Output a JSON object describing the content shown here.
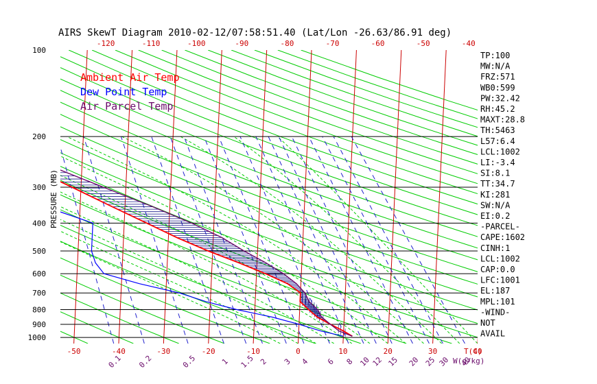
{
  "chart_data": {
    "type": "line",
    "title": "AIRS SkewT Diagram 2010-02-12/07:58:51.40 (Lat/Lon -26.63/86.91 deg)",
    "ylabel": "PRESSURE (MB)",
    "xlabel": "T(C)",
    "mixing_ratio_label": "W(g/kg)",
    "pressure_ticks": [
      100,
      200,
      300,
      400,
      500,
      600,
      700,
      800,
      900,
      1000
    ],
    "ylim": [
      1050,
      100
    ],
    "xlim_bottom": [
      -53,
      40
    ],
    "xlim_top": [
      -130,
      -38
    ],
    "top_ticks": [
      -120,
      -110,
      -100,
      -90,
      -80,
      -70,
      -60,
      -50,
      -40
    ],
    "bottom_ticks": [
      -50,
      -40,
      -30,
      -20,
      -10,
      0,
      10,
      20,
      30,
      40
    ],
    "mixing_ratio_ticks": [
      "0.1",
      "0.2",
      "0.5",
      "1",
      "1.5",
      "2",
      "3",
      "4",
      "6",
      "8",
      "10",
      "12",
      "15",
      "20",
      "25",
      "30",
      "40"
    ],
    "mixing_ratio_values": [
      0.1,
      0.2,
      0.5,
      1,
      1.5,
      2,
      3,
      4,
      6,
      8,
      10,
      12,
      15,
      20,
      25,
      30,
      40
    ],
    "legend": [
      {
        "label": "Ambient Air Temp",
        "color": "#ff0000"
      },
      {
        "label": "Dew Point Temp",
        "color": "#0000ff"
      },
      {
        "label": "Air Parcel Temp",
        "color": "#6a0a6a"
      }
    ],
    "colors": {
      "isotherm": "#cc0000",
      "dry_adiabat": "#00cc00",
      "moist_adiabat": "#00cc00",
      "mixing_ratio": "#2020cc",
      "hatch": "#1a1a8a",
      "isobar": "#000000"
    },
    "series": [
      {
        "name": "Ambient Air Temp",
        "points": [
          [
            100,
            -69
          ],
          [
            120,
            -72
          ],
          [
            140,
            -76
          ],
          [
            160,
            -77
          ],
          [
            180,
            -77
          ],
          [
            195,
            -77
          ],
          [
            210,
            -74
          ],
          [
            250,
            -63
          ],
          [
            300,
            -52
          ],
          [
            350,
            -43
          ],
          [
            400,
            -35
          ],
          [
            450,
            -28
          ],
          [
            500,
            -21
          ],
          [
            550,
            -14
          ],
          [
            600,
            -8
          ],
          [
            650,
            -3
          ],
          [
            700,
            0
          ],
          [
            750,
            0
          ],
          [
            800,
            2
          ],
          [
            850,
            4
          ],
          [
            900,
            7
          ],
          [
            950,
            10
          ],
          [
            990,
            12
          ]
        ]
      },
      {
        "name": "Dew Point Temp",
        "points": [
          [
            100,
            -80
          ],
          [
            120,
            -82
          ],
          [
            150,
            -86
          ],
          [
            180,
            -87
          ],
          [
            200,
            -87
          ],
          [
            230,
            -88
          ],
          [
            260,
            -82
          ],
          [
            300,
            -72
          ],
          [
            350,
            -58
          ],
          [
            400,
            -47
          ],
          [
            450,
            -47
          ],
          [
            500,
            -47
          ],
          [
            550,
            -46
          ],
          [
            600,
            -44
          ],
          [
            650,
            -36
          ],
          [
            700,
            -27
          ],
          [
            750,
            -21
          ],
          [
            800,
            -14
          ],
          [
            850,
            -6
          ],
          [
            900,
            0
          ],
          [
            950,
            5
          ],
          [
            990,
            10
          ]
        ]
      },
      {
        "name": "Air Parcel Temp",
        "points": [
          [
            100,
            -98
          ],
          [
            120,
            -94
          ],
          [
            140,
            -89
          ],
          [
            160,
            -85
          ],
          [
            180,
            -79
          ],
          [
            200,
            -72
          ],
          [
            250,
            -58
          ],
          [
            300,
            -45
          ],
          [
            350,
            -34
          ],
          [
            400,
            -25
          ],
          [
            450,
            -18
          ],
          [
            500,
            -13
          ],
          [
            550,
            -8
          ],
          [
            600,
            -4
          ],
          [
            650,
            -1
          ],
          [
            700,
            1
          ],
          [
            750,
            2
          ],
          [
            800,
            4
          ],
          [
            850,
            5
          ],
          [
            900,
            7
          ],
          [
            950,
            9
          ],
          [
            990,
            12
          ]
        ]
      }
    ],
    "stats": [
      "TP:100",
      "MW:N/A",
      "FRZ:571",
      "WB0:599",
      "PW:32.42",
      "RH:45.2",
      "MAXT:28.8",
      "TH:5463",
      "L57:6.4",
      "LCL:1002",
      "LI:-3.4",
      "SI:8.1",
      "TT:34.7",
      "KI:281",
      "SW:N/A",
      "EI:0.2",
      "-PARCEL-",
      "CAPE:1602",
      "CINH:1",
      "LCL:1002",
      "CAP:0.0",
      "LFC:1001",
      "EL:187",
      "MPL:101",
      "-WIND-",
      "NOT",
      "AVAIL"
    ]
  }
}
